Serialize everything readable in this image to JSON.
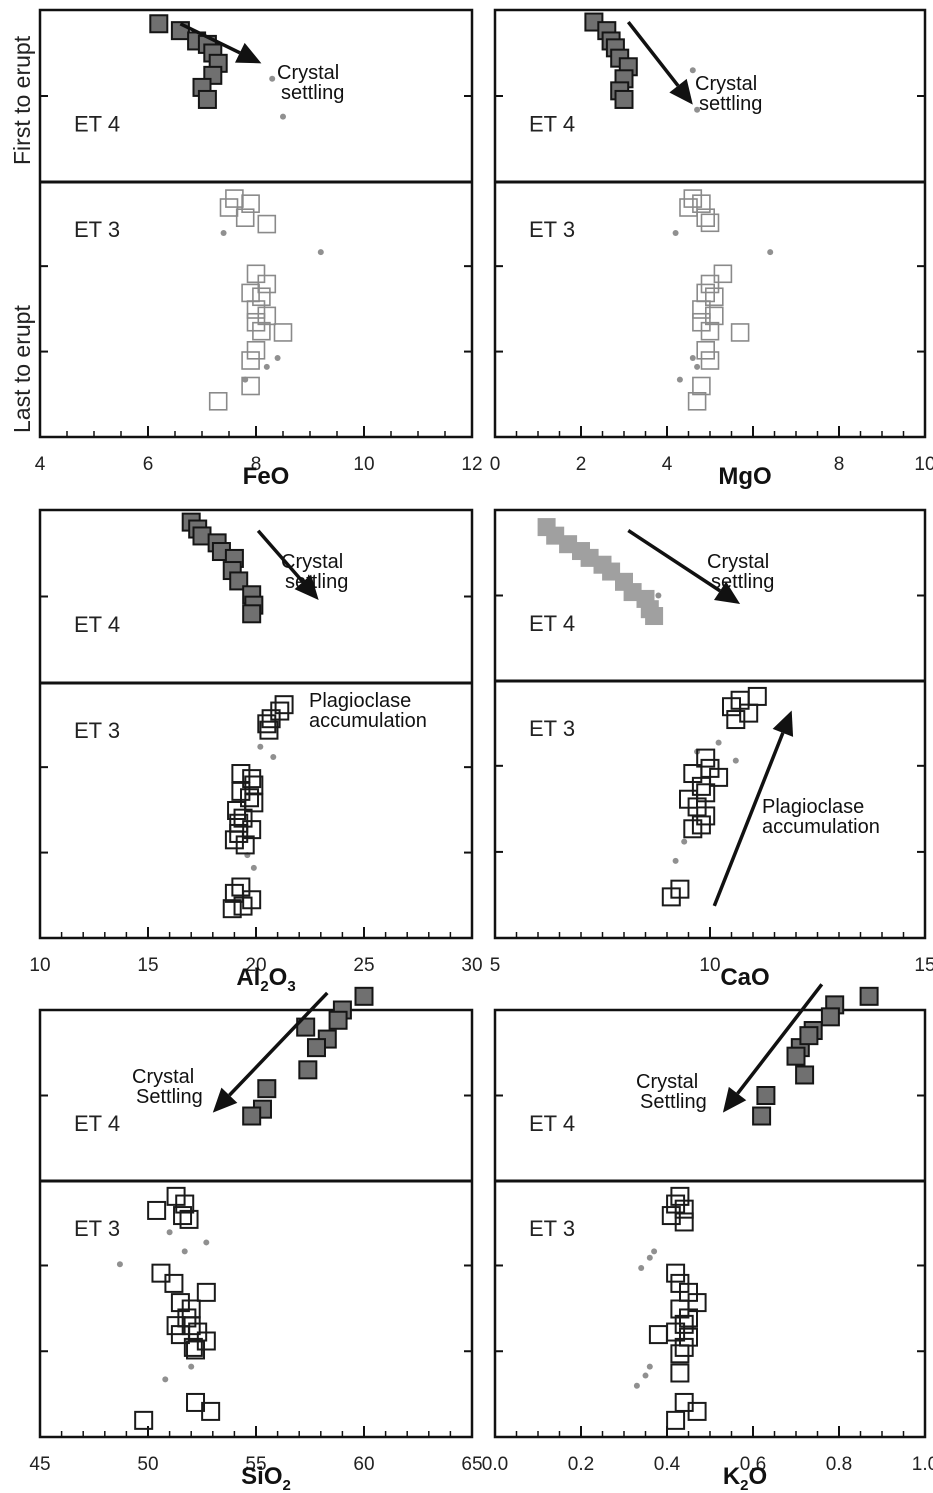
{
  "side_labels": {
    "top": "First to erupt",
    "bottom": "Last to erupt"
  },
  "colors": {
    "et4_fill": "#707070",
    "et4_fill_light": "#a0a0a0",
    "et3_stroke": "#1a1a1a",
    "et3_stroke_light": "#8a8a8a",
    "dot": "#909090"
  },
  "chart_data": [
    {
      "type": "scatter",
      "xlabel": "FeO",
      "xlabel_sub": "",
      "xlim": [
        4,
        12
      ],
      "ticks": [
        4,
        6,
        8,
        10,
        12
      ],
      "tick_labels": [
        "4",
        "6",
        "8",
        "10",
        "12"
      ],
      "minor_step": 0.5,
      "zones": [
        "ET 4",
        "ET 3"
      ],
      "annotations": [
        {
          "text": [
            "Crystal",
            "settling"
          ]
        }
      ],
      "arrows": [
        {
          "from": [
            6.6,
            0.08
          ],
          "to": [
            8.1,
            0.31
          ]
        }
      ],
      "series": [
        {
          "group": "ET 4",
          "style": "filled",
          "x": [
            6.2,
            6.6,
            6.9,
            7.1,
            7.2,
            7.3,
            7.2,
            7.0,
            7.1
          ],
          "y": [
            0.08,
            0.12,
            0.18,
            0.2,
            0.25,
            0.31,
            0.38,
            0.45,
            0.52
          ]
        },
        {
          "group": "ET 3",
          "style": "open-light",
          "x": [
            7.6,
            7.5,
            7.9,
            7.8,
            8.2,
            8.0,
            8.2,
            7.9,
            8.1,
            8.0,
            8.2,
            8.0,
            8.1,
            8.5,
            8.0,
            7.9,
            7.9,
            7.3
          ],
          "y": [
            1.13,
            1.2,
            1.17,
            1.28,
            1.33,
            1.72,
            1.8,
            1.87,
            1.9,
            2.0,
            2.05,
            2.1,
            2.17,
            2.18,
            2.32,
            2.4,
            2.6,
            2.72
          ]
        },
        {
          "group": "dots",
          "style": "dot",
          "x": [
            8.3,
            8.5,
            7.4,
            9.2,
            8.2,
            7.8,
            8.4
          ],
          "y": [
            0.4,
            0.62,
            1.4,
            1.55,
            2.45,
            2.55,
            2.38
          ]
        }
      ]
    },
    {
      "type": "scatter",
      "xlabel": "MgO",
      "xlabel_sub": "",
      "xlim": [
        0,
        10
      ],
      "ticks": [
        0,
        2,
        4,
        6,
        8,
        10
      ],
      "tick_labels": [
        "0",
        "2",
        "4",
        "",
        "8",
        "10"
      ],
      "minor_step": 0.5,
      "zones": [
        "ET 4",
        "ET 3"
      ],
      "annotations": [
        {
          "text": [
            "Crystal",
            "settling"
          ]
        }
      ],
      "arrows": [
        {
          "from": [
            3.1,
            0.07
          ],
          "to": [
            4.6,
            0.55
          ]
        }
      ],
      "series": [
        {
          "group": "ET 4",
          "style": "filled",
          "x": [
            2.3,
            2.6,
            2.7,
            2.8,
            2.9,
            3.1,
            3.0,
            2.9,
            3.0
          ],
          "y": [
            0.07,
            0.12,
            0.18,
            0.22,
            0.28,
            0.33,
            0.4,
            0.47,
            0.52
          ]
        },
        {
          "group": "ET 3",
          "style": "open-light",
          "x": [
            4.6,
            4.5,
            4.8,
            4.9,
            5.0,
            5.3,
            5.0,
            4.9,
            5.1,
            4.8,
            5.1,
            4.8,
            5.0,
            5.7,
            4.9,
            5.0,
            4.8,
            4.7
          ],
          "y": [
            1.13,
            1.2,
            1.17,
            1.28,
            1.32,
            1.72,
            1.8,
            1.87,
            1.9,
            2.0,
            2.05,
            2.1,
            2.17,
            2.18,
            2.32,
            2.4,
            2.6,
            2.72
          ]
        },
        {
          "group": "dots",
          "style": "dot",
          "x": [
            4.6,
            4.7,
            4.2,
            6.4,
            4.7,
            4.3,
            4.6
          ],
          "y": [
            0.35,
            0.58,
            1.4,
            1.55,
            2.45,
            2.55,
            2.38
          ]
        }
      ]
    },
    {
      "type": "scatter",
      "xlabel": "Al",
      "xlabel_sub": "2",
      "xlabel_mid": "O",
      "xlabel_sub2": "3",
      "xlim": [
        10,
        30
      ],
      "ticks": [
        10,
        15,
        20,
        25,
        30
      ],
      "tick_labels": [
        "10",
        "15",
        "20",
        "25",
        "30"
      ],
      "minor_step": 1,
      "zones": [
        "ET 4",
        "ET 3"
      ],
      "annotations": [
        {
          "text": [
            "Crystal",
            "settling"
          ]
        },
        {
          "text": [
            "Plagioclase",
            "accumulation"
          ]
        }
      ],
      "arrows": [
        {
          "from": [
            20.1,
            0.12
          ],
          "to": [
            22.9,
            0.52
          ]
        }
      ],
      "series": [
        {
          "group": "ET 4",
          "style": "filled",
          "x": [
            17.0,
            17.3,
            17.5,
            18.2,
            18.4,
            19.0,
            18.9,
            19.2,
            19.8,
            19.9,
            19.8
          ],
          "y": [
            0.07,
            0.11,
            0.15,
            0.19,
            0.24,
            0.28,
            0.35,
            0.41,
            0.49,
            0.55,
            0.6
          ]
        },
        {
          "group": "ET 3",
          "style": "open",
          "x": [
            21.3,
            21.1,
            20.7,
            20.5,
            20.6,
            19.3,
            19.8,
            19.9,
            19.3,
            19.7,
            19.9,
            19.1,
            19.4,
            19.2,
            19.8,
            19.2,
            19.0,
            19.5,
            19.3,
            19.0,
            19.8,
            19.4,
            18.9
          ],
          "y": [
            1.17,
            1.22,
            1.28,
            1.32,
            1.37,
            1.71,
            1.75,
            1.8,
            1.85,
            1.9,
            1.94,
            2.0,
            2.06,
            2.1,
            2.15,
            2.18,
            2.23,
            2.27,
            2.6,
            2.65,
            2.7,
            2.75,
            2.77
          ]
        },
        {
          "group": "dots",
          "style": "dot",
          "x": [
            20.2,
            20.8,
            19.6,
            19.9
          ],
          "y": [
            1.5,
            1.58,
            2.35,
            2.45
          ]
        }
      ]
    },
    {
      "type": "scatter",
      "xlabel": "CaO",
      "xlabel_sub": "",
      "xlim": [
        5,
        15
      ],
      "ticks": [
        5,
        10,
        15
      ],
      "tick_labels": [
        "5",
        "10",
        "15"
      ],
      "minor_step": 0.5,
      "zones": [
        "ET 4",
        "ET 3"
      ],
      "annotations": [
        {
          "text": [
            "Crystal",
            "settling"
          ]
        },
        {
          "text": [
            "Plagioclase",
            "accumulation"
          ]
        }
      ],
      "arrows": [
        {
          "from": [
            8.1,
            0.12
          ],
          "to": [
            10.7,
            0.55
          ]
        },
        {
          "from": [
            10.1,
            2.75
          ],
          "to": [
            11.9,
            1.23
          ]
        }
      ],
      "series": [
        {
          "group": "ET 4",
          "style": "filled-light",
          "x": [
            6.2,
            6.4,
            6.7,
            7.0,
            7.2,
            7.5,
            7.7,
            8.0,
            8.2,
            8.5,
            8.6,
            8.7
          ],
          "y": [
            0.1,
            0.15,
            0.2,
            0.24,
            0.28,
            0.32,
            0.36,
            0.42,
            0.48,
            0.52,
            0.58,
            0.62
          ]
        },
        {
          "group": "ET 3",
          "style": "open",
          "x": [
            11.1,
            10.7,
            10.5,
            10.9,
            10.6,
            9.9,
            10.0,
            9.6,
            10.2,
            9.8,
            9.9,
            9.5,
            9.7,
            9.9,
            9.8,
            9.6,
            9.3,
            9.1
          ],
          "y": [
            1.12,
            1.15,
            1.2,
            1.25,
            1.3,
            1.6,
            1.68,
            1.72,
            1.75,
            1.82,
            1.87,
            1.92,
            1.98,
            2.05,
            2.12,
            2.15,
            2.62,
            2.68
          ]
        },
        {
          "group": "dots",
          "style": "dot",
          "x": [
            8.8,
            9.7,
            10.6,
            9.4,
            9.2,
            10.2
          ],
          "y": [
            0.5,
            1.55,
            1.62,
            2.25,
            2.4,
            1.48
          ]
        }
      ]
    },
    {
      "type": "scatter",
      "xlabel": "SiO",
      "xlabel_sub": "2",
      "xlim": [
        45,
        65
      ],
      "ticks": [
        45,
        50,
        55,
        60,
        65
      ],
      "tick_labels": [
        "45",
        "50",
        "55",
        "60",
        "65"
      ],
      "minor_step": 1,
      "zones": [
        "ET 4",
        "ET 3"
      ],
      "annotations": [
        {
          "text": [
            "Crystal",
            "Settling"
          ]
        }
      ],
      "arrows": [
        {
          "from": [
            58.3,
            -0.1
          ],
          "to": [
            53.0,
            0.6
          ]
        }
      ],
      "series": [
        {
          "group": "ET 4",
          "style": "filled",
          "x": [
            60.0,
            59.0,
            58.8,
            58.3,
            57.3,
            57.8,
            57.4,
            55.5,
            55.3,
            54.8
          ],
          "y": [
            -0.08,
            0.0,
            0.06,
            0.17,
            0.1,
            0.22,
            0.35,
            0.46,
            0.58,
            0.62
          ]
        },
        {
          "group": "ET 3",
          "style": "open",
          "x": [
            51.3,
            51.7,
            50.4,
            51.6,
            51.9,
            50.6,
            51.2,
            52.7,
            51.5,
            52.0,
            51.8,
            51.3,
            52.3,
            52.7,
            51.5,
            52.0,
            52.1,
            52.2,
            52.2,
            52.9,
            49.8
          ],
          "y": [
            1.12,
            1.18,
            1.23,
            1.27,
            1.3,
            1.72,
            1.8,
            1.87,
            1.95,
            2.0,
            2.07,
            2.13,
            2.18,
            2.25,
            2.2,
            2.13,
            2.3,
            2.32,
            2.73,
            2.8,
            2.87
          ]
        },
        {
          "group": "dots",
          "style": "dot",
          "x": [
            51.0,
            52.7,
            48.7,
            51.7,
            52.0,
            50.8
          ],
          "y": [
            1.4,
            1.48,
            1.65,
            1.55,
            2.45,
            2.55
          ]
        }
      ]
    },
    {
      "type": "scatter",
      "xlabel": "K",
      "xlabel_sub": "2",
      "xlabel_mid": "O",
      "xlim": [
        0.0,
        1.0
      ],
      "ticks": [
        0.0,
        0.2,
        0.4,
        0.6,
        0.8,
        1.0
      ],
      "tick_labels": [
        "0.0",
        "0.2",
        "0.4",
        "0.6",
        "0.8",
        "1.0"
      ],
      "minor_step": 0.05,
      "zones": [
        "ET 4",
        "ET 3"
      ],
      "annotations": [
        {
          "text": [
            "Crystal",
            "Settling"
          ]
        }
      ],
      "arrows": [
        {
          "from": [
            0.76,
            -0.15
          ],
          "to": [
            0.53,
            0.6
          ]
        }
      ],
      "series": [
        {
          "group": "ET 4",
          "style": "filled",
          "x": [
            0.87,
            0.79,
            0.78,
            0.74,
            0.71,
            0.73,
            0.7,
            0.72,
            0.63,
            0.62
          ],
          "y": [
            -0.08,
            -0.03,
            0.04,
            0.12,
            0.22,
            0.15,
            0.27,
            0.38,
            0.5,
            0.62
          ]
        },
        {
          "group": "ET 3",
          "style": "open",
          "x": [
            0.43,
            0.42,
            0.44,
            0.41,
            0.44,
            0.42,
            0.43,
            0.45,
            0.47,
            0.43,
            0.45,
            0.44,
            0.42,
            0.45,
            0.38,
            0.44,
            0.43,
            0.43,
            0.44,
            0.47,
            0.42
          ],
          "y": [
            1.12,
            1.18,
            1.22,
            1.27,
            1.32,
            1.72,
            1.8,
            1.87,
            1.95,
            2.0,
            2.07,
            2.12,
            2.18,
            2.22,
            2.2,
            2.3,
            2.35,
            2.5,
            2.73,
            2.8,
            2.87
          ]
        },
        {
          "group": "dots",
          "style": "dot",
          "x": [
            0.37,
            0.36,
            0.34,
            0.36,
            0.35,
            0.33
          ],
          "y": [
            1.55,
            1.6,
            1.68,
            2.45,
            2.52,
            2.6
          ]
        }
      ]
    }
  ]
}
